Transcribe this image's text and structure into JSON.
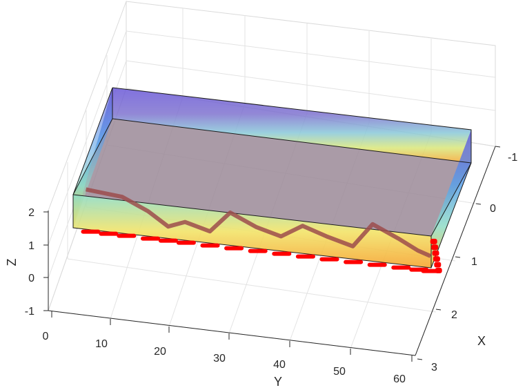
{
  "chart_data": {
    "type": "3d-surface-scatter",
    "title": "",
    "xlabel": "X",
    "ylabel": "Y",
    "zlabel": "Z",
    "x_ticks": [
      "-1",
      "0",
      "1",
      "2",
      "3"
    ],
    "y_ticks": [
      "0",
      "10",
      "20",
      "30",
      "40",
      "50",
      "60"
    ],
    "z_ticks": [
      "-1",
      "0",
      "1",
      "2"
    ],
    "xlim": [
      -1,
      3
    ],
    "ylim": [
      0,
      60
    ],
    "zlim": [
      -1,
      2
    ],
    "grid": true,
    "box": {
      "x": [
        -1,
        1
      ],
      "y": [
        0,
        60
      ],
      "z": [
        1,
        2
      ],
      "colormap": [
        "#6a58d8",
        "#5aa0e8",
        "#8fdcc6",
        "#f2e46a",
        "#f6a531"
      ],
      "alpha": 0.55
    },
    "scatter": {
      "color": "#ff0000",
      "x": [
        -0.7,
        -0.6,
        -0.5,
        0.2,
        1.0,
        0.6,
        1.0,
        -0.3,
        0.4,
        0.8,
        0.0,
        0.5,
        0.9,
        -0.6,
        0.1,
        0.7,
        0.95
      ],
      "y": [
        2,
        5,
        8,
        12,
        15,
        18,
        22,
        26,
        30,
        34,
        38,
        42,
        46,
        50,
        54,
        57,
        59
      ],
      "z": [
        1,
        1,
        1,
        1,
        1,
        1,
        1,
        1,
        1,
        1,
        1,
        1,
        1,
        1,
        1,
        1,
        1
      ]
    }
  }
}
